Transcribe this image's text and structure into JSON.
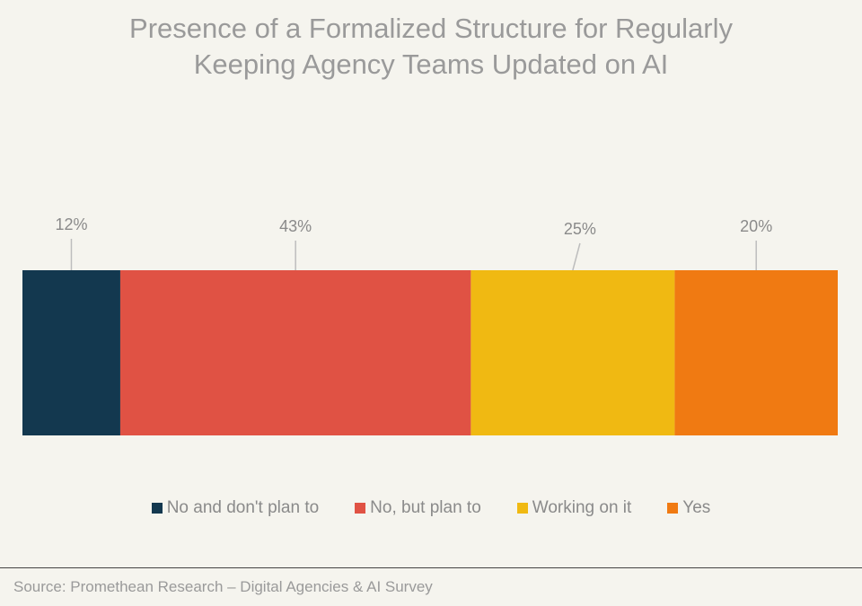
{
  "chart_data": {
    "type": "bar",
    "orientation": "horizontal-stacked-100",
    "title_lines": [
      "Presence of a Formalized Structure for Regularly",
      "Keeping Agency Teams Updated on AI"
    ],
    "categories": [
      "No and don't plan to",
      "No, but plan to",
      "Working on it",
      "Yes"
    ],
    "values": [
      12,
      43,
      25,
      20
    ],
    "data_labels": [
      "12%",
      "43%",
      "25%",
      "20%"
    ],
    "colors": [
      "#13384f",
      "#e05244",
      "#f0b912",
      "#f07a12"
    ],
    "legend_position": "bottom",
    "grid": false,
    "xlabel": "",
    "ylabel": ""
  },
  "source": "Source: Promethean Research – Digital Agencies & AI Survey"
}
